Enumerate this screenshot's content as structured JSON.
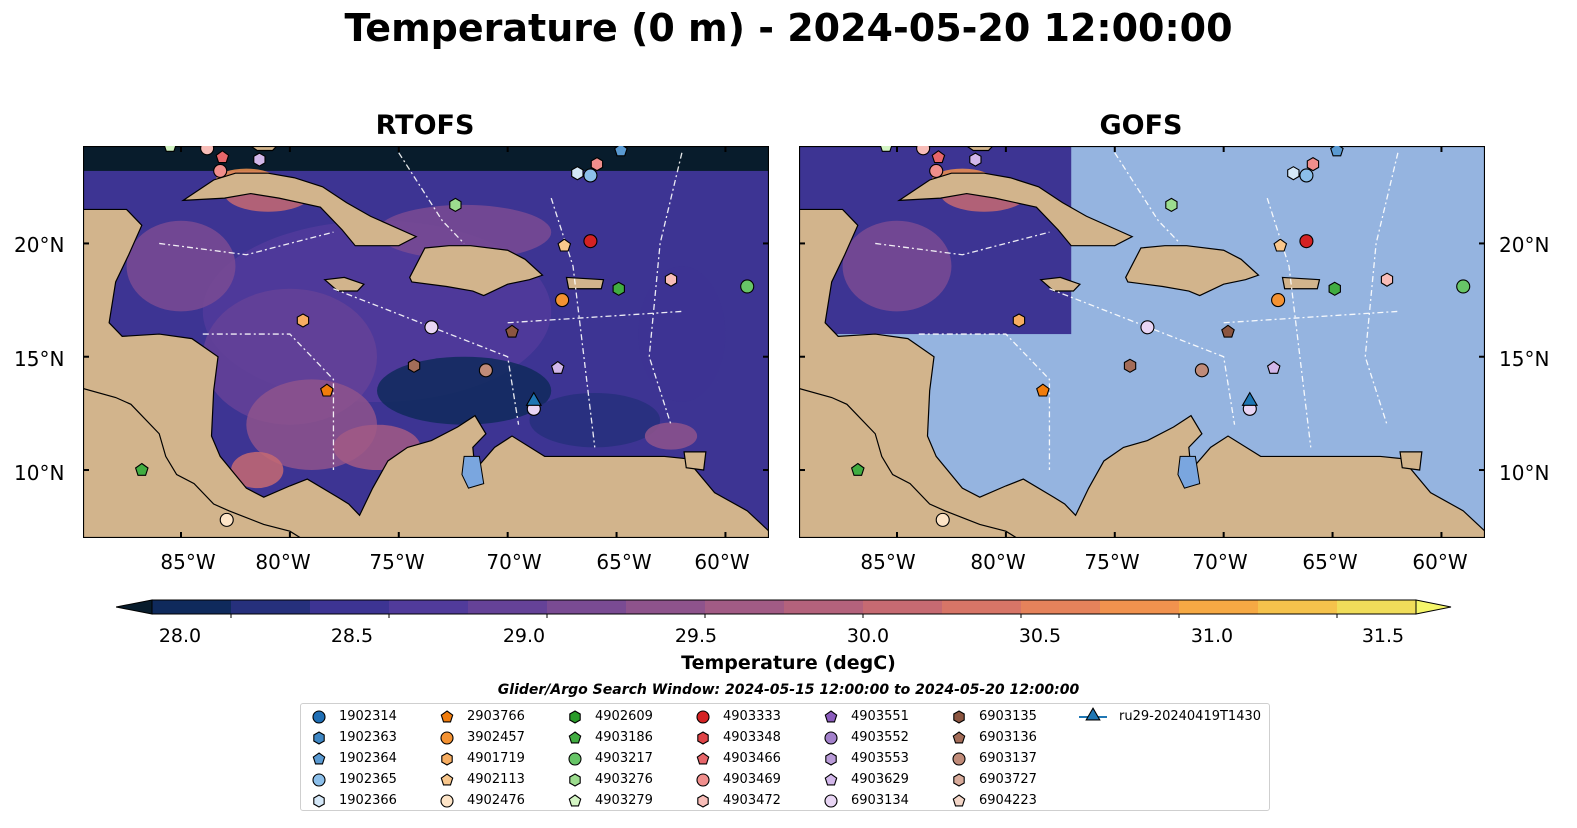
{
  "title": "Temperature (0 m) - 2024-05-20 12:00:00",
  "panels": [
    {
      "title": "RTOFS",
      "type": "full"
    },
    {
      "title": "GOFS",
      "type": "partial"
    }
  ],
  "map_extent": {
    "lon": [
      -89.5,
      -58.0
    ],
    "lat": [
      7.0,
      24.3
    ]
  },
  "lat_ticks": [
    "20°N",
    "15°N",
    "10°N"
  ],
  "lat_values": [
    20,
    15,
    10
  ],
  "lon_ticks": [
    "85°W",
    "80°W",
    "75°W",
    "70°W",
    "65°W",
    "60°W"
  ],
  "lon_values": [
    -85,
    -80,
    -75,
    -70,
    -65,
    -60
  ],
  "colorbar": {
    "label": "Temperature (degC)",
    "range": [
      28.0,
      31.5
    ],
    "tick_labels": [
      "28.0",
      "28.5",
      "29.0",
      "29.5",
      "30.0",
      "30.5",
      "31.0",
      "31.5"
    ],
    "tick_values": [
      28.0,
      28.5,
      29.0,
      29.5,
      30.0,
      30.5,
      31.0,
      31.5
    ],
    "colors": [
      "#0f2a5c",
      "#26307c",
      "#3d3493",
      "#513b9b",
      "#654298",
      "#7a4b93",
      "#8e538c",
      "#a25b85",
      "#b4627c",
      "#c66a72",
      "#d77567",
      "#e5825b",
      "#f1924e",
      "#f6a944",
      "#f5c24c",
      "#f0dd5a"
    ],
    "extend_low": "#081c2c",
    "extend_high": "#f5f66a"
  },
  "search_window": "Glider/Argo Search Window: 2024-05-15 12:00:00 to 2024-05-20 12:00:00",
  "legend": [
    {
      "label": "1902314",
      "shape": "circle",
      "color": "#1f6eb4"
    },
    {
      "label": "1902363",
      "shape": "hexagon",
      "color": "#3f87c4"
    },
    {
      "label": "1902364",
      "shape": "pentagon",
      "color": "#5a9ad2"
    },
    {
      "label": "1902365",
      "shape": "circle",
      "color": "#8cbfea"
    },
    {
      "label": "1902366",
      "shape": "hexagon",
      "color": "#d5e8f8"
    },
    {
      "label": "2903766",
      "shape": "pentagon",
      "color": "#f07c0c"
    },
    {
      "label": "3902457",
      "shape": "circle",
      "color": "#f49232"
    },
    {
      "label": "4901719",
      "shape": "hexagon",
      "color": "#f7ad61"
    },
    {
      "label": "4902113",
      "shape": "pentagon",
      "color": "#f9c78c"
    },
    {
      "label": "4902476",
      "shape": "circle",
      "color": "#fde4c7"
    },
    {
      "label": "4902609",
      "shape": "hexagon",
      "color": "#2a9b2a"
    },
    {
      "label": "4903186",
      "shape": "pentagon",
      "color": "#41ad41"
    },
    {
      "label": "4903217",
      "shape": "circle",
      "color": "#67c567"
    },
    {
      "label": "4903276",
      "shape": "hexagon",
      "color": "#9cdc8e"
    },
    {
      "label": "4903279",
      "shape": "pentagon",
      "color": "#d4f5c4"
    },
    {
      "label": "4903333",
      "shape": "circle",
      "color": "#d42223"
    },
    {
      "label": "4903348",
      "shape": "hexagon",
      "color": "#df4447"
    },
    {
      "label": "4903466",
      "shape": "pentagon",
      "color": "#e7666a"
    },
    {
      "label": "4903469",
      "shape": "circle",
      "color": "#f08e8c"
    },
    {
      "label": "4903472",
      "shape": "hexagon",
      "color": "#f8bdb8"
    },
    {
      "label": "4903551",
      "shape": "pentagon",
      "color": "#8b5cbd"
    },
    {
      "label": "4903552",
      "shape": "circle",
      "color": "#a381cb"
    },
    {
      "label": "4903553",
      "shape": "hexagon",
      "color": "#b99bd8"
    },
    {
      "label": "4903629",
      "shape": "pentagon",
      "color": "#d2b7ea"
    },
    {
      "label": "6903134",
      "shape": "circle",
      "color": "#e8d5f4"
    },
    {
      "label": "6903135",
      "shape": "hexagon",
      "color": "#8b5540"
    },
    {
      "label": "6903136",
      "shape": "pentagon",
      "color": "#a36c58"
    },
    {
      "label": "6903137",
      "shape": "circle",
      "color": "#c08b79"
    },
    {
      "label": "6903727",
      "shape": "hexagon",
      "color": "#d8ab9b"
    },
    {
      "label": "6904223",
      "shape": "pentagon",
      "color": "#f3d6c8"
    },
    {
      "label": "ru29-20240419T1430",
      "shape": "triangle-line",
      "color": "#1f77b4"
    }
  ],
  "markers": [
    {
      "lon": -85.5,
      "lat": 24.3,
      "shape": "pentagon",
      "color": "#d4f5c4"
    },
    {
      "lon": -83.8,
      "lat": 24.2,
      "shape": "circle",
      "color": "#f8bdb8"
    },
    {
      "lon": -83.1,
      "lat": 23.8,
      "shape": "pentagon",
      "color": "#e7666a"
    },
    {
      "lon": -83.2,
      "lat": 23.2,
      "shape": "circle",
      "color": "#f08e8c"
    },
    {
      "lon": -81.4,
      "lat": 23.7,
      "shape": "hexagon",
      "color": "#d2b7ea"
    },
    {
      "lon": -72.4,
      "lat": 21.7,
      "shape": "hexagon",
      "color": "#9cdc8e"
    },
    {
      "lon": -66.8,
      "lat": 23.1,
      "shape": "hexagon",
      "color": "#d5e8f8"
    },
    {
      "lon": -66.2,
      "lat": 23.0,
      "shape": "circle",
      "color": "#8cbfea"
    },
    {
      "lon": -65.9,
      "lat": 23.5,
      "shape": "hexagon",
      "color": "#f08e8c"
    },
    {
      "lon": -64.8,
      "lat": 24.1,
      "shape": "pentagon",
      "color": "#5a9ad2"
    },
    {
      "lon": -67.4,
      "lat": 19.9,
      "shape": "pentagon",
      "color": "#f9c78c"
    },
    {
      "lon": -66.2,
      "lat": 20.1,
      "shape": "circle",
      "color": "#d42223"
    },
    {
      "lon": -64.9,
      "lat": 18.0,
      "shape": "hexagon",
      "color": "#41ad41"
    },
    {
      "lon": -67.5,
      "lat": 17.5,
      "shape": "circle",
      "color": "#f49232"
    },
    {
      "lon": -62.5,
      "lat": 18.4,
      "shape": "hexagon",
      "color": "#f8bdb8"
    },
    {
      "lon": -59.0,
      "lat": 18.1,
      "shape": "circle",
      "color": "#67c567"
    },
    {
      "lon": -79.4,
      "lat": 16.6,
      "shape": "hexagon",
      "color": "#f7ad61"
    },
    {
      "lon": -73.5,
      "lat": 16.3,
      "shape": "circle",
      "color": "#e8d5f4"
    },
    {
      "lon": -69.8,
      "lat": 16.1,
      "shape": "pentagon",
      "color": "#8b5540"
    },
    {
      "lon": -74.3,
      "lat": 14.6,
      "shape": "hexagon",
      "color": "#a36c58"
    },
    {
      "lon": -71.0,
      "lat": 14.4,
      "shape": "circle",
      "color": "#c08b79"
    },
    {
      "lon": -67.7,
      "lat": 14.5,
      "shape": "pentagon",
      "color": "#d2b7ea"
    },
    {
      "lon": -78.3,
      "lat": 13.5,
      "shape": "pentagon",
      "color": "#f07c0c"
    },
    {
      "lon": -68.8,
      "lat": 12.7,
      "shape": "circle",
      "color": "#e8d5f4"
    },
    {
      "lon": -86.8,
      "lat": 10.0,
      "shape": "pentagon",
      "color": "#41ad41"
    },
    {
      "lon": -82.9,
      "lat": 7.8,
      "shape": "circle",
      "color": "#fde4c7"
    },
    {
      "lon": -68.8,
      "lat": 13.0,
      "shape": "triangle",
      "color": "#1f77b4"
    }
  ]
}
